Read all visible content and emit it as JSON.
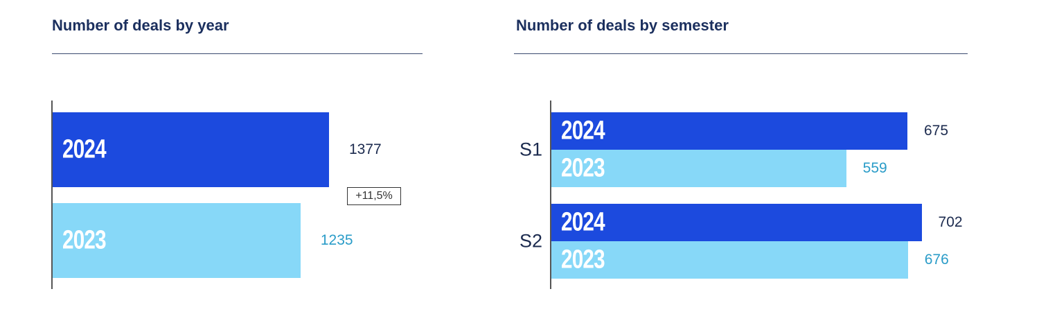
{
  "colors": {
    "y2024": "#1c4ade",
    "y2023": "#87d8f8",
    "val2024": "#1b2a4e",
    "val2023": "#2a9cc8"
  },
  "chart_data": [
    {
      "type": "bar",
      "orientation": "horizontal",
      "title": "Number of deals by year",
      "categories": [
        "2024",
        "2023"
      ],
      "values": [
        1377,
        1235
      ],
      "annotation": "+11,5%"
    },
    {
      "type": "bar",
      "orientation": "horizontal",
      "title": "Number of deals by semester",
      "categories": [
        "S1",
        "S2"
      ],
      "series": [
        {
          "name": "2024",
          "values": [
            675,
            702
          ]
        },
        {
          "name": "2023",
          "values": [
            559,
            676
          ]
        }
      ]
    }
  ]
}
